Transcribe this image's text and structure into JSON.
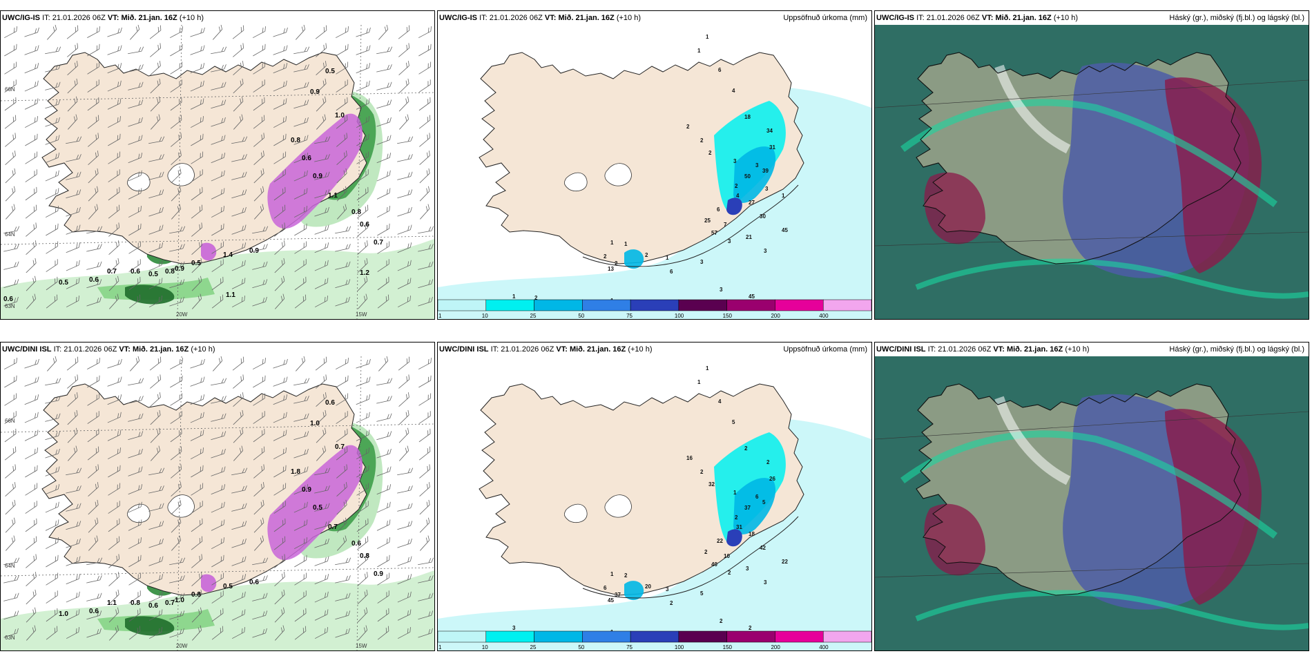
{
  "rows": [
    {
      "model": "UWC/IG-IS",
      "it_label": "IT:",
      "it_value": "21.01.2026 06Z",
      "vt_label": "VT:",
      "vt_value": "Mið. 21.jan. 16Z",
      "lead": "(+10 h)",
      "panel2_title": "Uppsöfnuð úrkoma (mm)",
      "panel3_title": "Háský (gr.), miðský (fj.bl.) og lágský (bl.)",
      "map1_labels": [
        "0.5",
        "0.9",
        "1.0",
        "0.8",
        "0.6",
        "0.9",
        "1.1",
        "0.8",
        "0.6",
        "0.7",
        "0.9",
        "1.4",
        "0.5",
        "0.9",
        "0.8",
        "0.5",
        "0.6",
        "0.7",
        "0.6",
        "0.5",
        "1.2",
        "1.1",
        "0.6"
      ],
      "map2_labels": [
        "1",
        "1",
        "6",
        "4",
        "18",
        "2",
        "2",
        "2",
        "34",
        "31",
        "3",
        "2",
        "3",
        "39",
        "50",
        "4",
        "27",
        "6",
        "25",
        "7",
        "57",
        "21",
        "30",
        "45",
        "3",
        "3",
        "3",
        "1",
        "2",
        "1",
        "1",
        "2",
        "2",
        "13",
        "6",
        "3",
        "45",
        "1",
        "1",
        "1",
        "1",
        "2",
        "3",
        "1"
      ],
      "axis_labels": {
        "lat_top": "66N",
        "lat_mid": "64N",
        "lat_bot": "63N",
        "lon_left": "20W",
        "lon_right": "15W"
      }
    },
    {
      "model": "UWC/DINI ISL",
      "it_label": "IT:",
      "it_value": "21.01.2026 06Z",
      "vt_label": "VT:",
      "vt_value": "Mið. 21.jan. 16Z",
      "lead": "(+10 h)",
      "panel2_title": "Uppsöfnuð úrkoma (mm)",
      "panel3_title": "Háský (gr.), miðský (fj.bl.) og lágský (bl.)",
      "map1_labels": [
        "0.6",
        "1.0",
        "0.7",
        "1.8",
        "0.9",
        "0.5",
        "0.7",
        "0.6",
        "0.8",
        "0.9",
        "0.6",
        "0.5",
        "0.8",
        "1.0",
        "0.7",
        "0.6",
        "0.8",
        "1.1",
        "0.6",
        "1.0"
      ],
      "map2_labels": [
        "1",
        "1",
        "4",
        "5",
        "2",
        "16",
        "2",
        "32",
        "2",
        "26",
        "1",
        "2",
        "6",
        "5",
        "37",
        "31",
        "18",
        "22",
        "2",
        "10",
        "40",
        "3",
        "42",
        "22",
        "3",
        "2",
        "5",
        "3",
        "20",
        "2",
        "1",
        "6",
        "37",
        "45",
        "2",
        "2",
        "2",
        "1",
        "3"
      ],
      "axis_labels": {
        "lat_top": "66N",
        "lat_mid": "64N",
        "lat_bot": "63N",
        "lon_left": "20W",
        "lon_right": "15W"
      }
    }
  ],
  "colorbar": {
    "ticks": [
      "1",
      "10",
      "25",
      "50",
      "75",
      "100",
      "150",
      "200",
      "400"
    ],
    "colors": [
      "#bff5f7",
      "#00f0f0",
      "#00b7e6",
      "#2f7fe6",
      "#2a3fb8",
      "#5a0050",
      "#9a006e",
      "#e6009a",
      "#f2a6ee"
    ]
  },
  "cloud_colors": {
    "high": "#4c5da6",
    "mid": "#8b1a4a",
    "low": "#2f6e64",
    "cover": "#1ad7a0"
  }
}
